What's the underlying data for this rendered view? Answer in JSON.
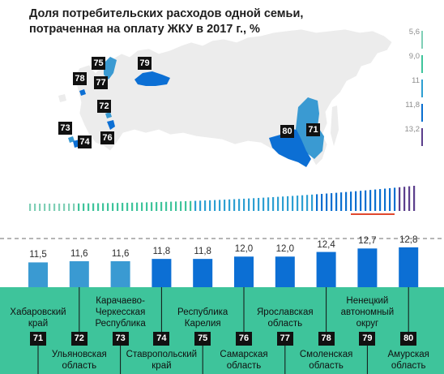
{
  "chart_data": {
    "type": "bar",
    "title": "Доля потребительских расходов одной семьи, потраченная на оплату ЖКУ в 2017 г., %",
    "legend_scale": [
      "5,6",
      "9,0",
      "11",
      "11,8",
      "13,2"
    ],
    "legend_colors": [
      "#7fcfb6",
      "#3ec49b",
      "#2d9fd2",
      "#0a6fd0",
      "#5b3e8c"
    ],
    "categories": [
      "Хабаровский край",
      "Ульяновская область",
      "Карачаево-Черкесская Республика",
      "Ставропольский край",
      "Республика Карелия",
      "Самарская область",
      "Ярославская область",
      "Смоленская область",
      "Ненецкий автономный округ",
      "Амурская область"
    ],
    "values": [
      11.5,
      11.6,
      11.6,
      11.8,
      11.8,
      12.0,
      12.0,
      12.4,
      12.7,
      12.8
    ],
    "value_labels": [
      "11,5",
      "11,6",
      "11,6",
      "11,8",
      "11,8",
      "12,0",
      "12,0",
      "12,4",
      "12,7",
      "12,8"
    ],
    "ranks": [
      "71",
      "72",
      "73",
      "74",
      "75",
      "76",
      "77",
      "78",
      "79",
      "80"
    ],
    "label_lines": [
      [
        "Хабаровский",
        "край"
      ],
      [
        "Ульяновская",
        "область"
      ],
      [
        "Карачаево-",
        "Черкесская",
        "Республика"
      ],
      [
        "Ставропольский",
        "край"
      ],
      [
        "Республика",
        "Карелия"
      ],
      [
        "Самарская",
        "область"
      ],
      [
        "Ярославская",
        "область"
      ],
      [
        "Смоленская",
        "область"
      ],
      [
        "Ненецкий",
        "автономный",
        "округ"
      ],
      [
        "Амурская",
        "область"
      ]
    ],
    "label_positions": [
      "top",
      "bottom",
      "top",
      "bottom",
      "top",
      "bottom",
      "top",
      "bottom",
      "top",
      "bottom"
    ],
    "map_markers": [
      "79",
      "75",
      "78",
      "77",
      "72",
      "73",
      "74",
      "76",
      "80",
      "71"
    ],
    "ylim": [
      0,
      13
    ],
    "grid": false,
    "colors": {
      "bar_light": "#3a9ad2",
      "bar_dark": "#0c6fd4",
      "band": "#3ec49b",
      "highlight_line": "#e0482e",
      "dashed_line": "#8b8b8b"
    }
  }
}
